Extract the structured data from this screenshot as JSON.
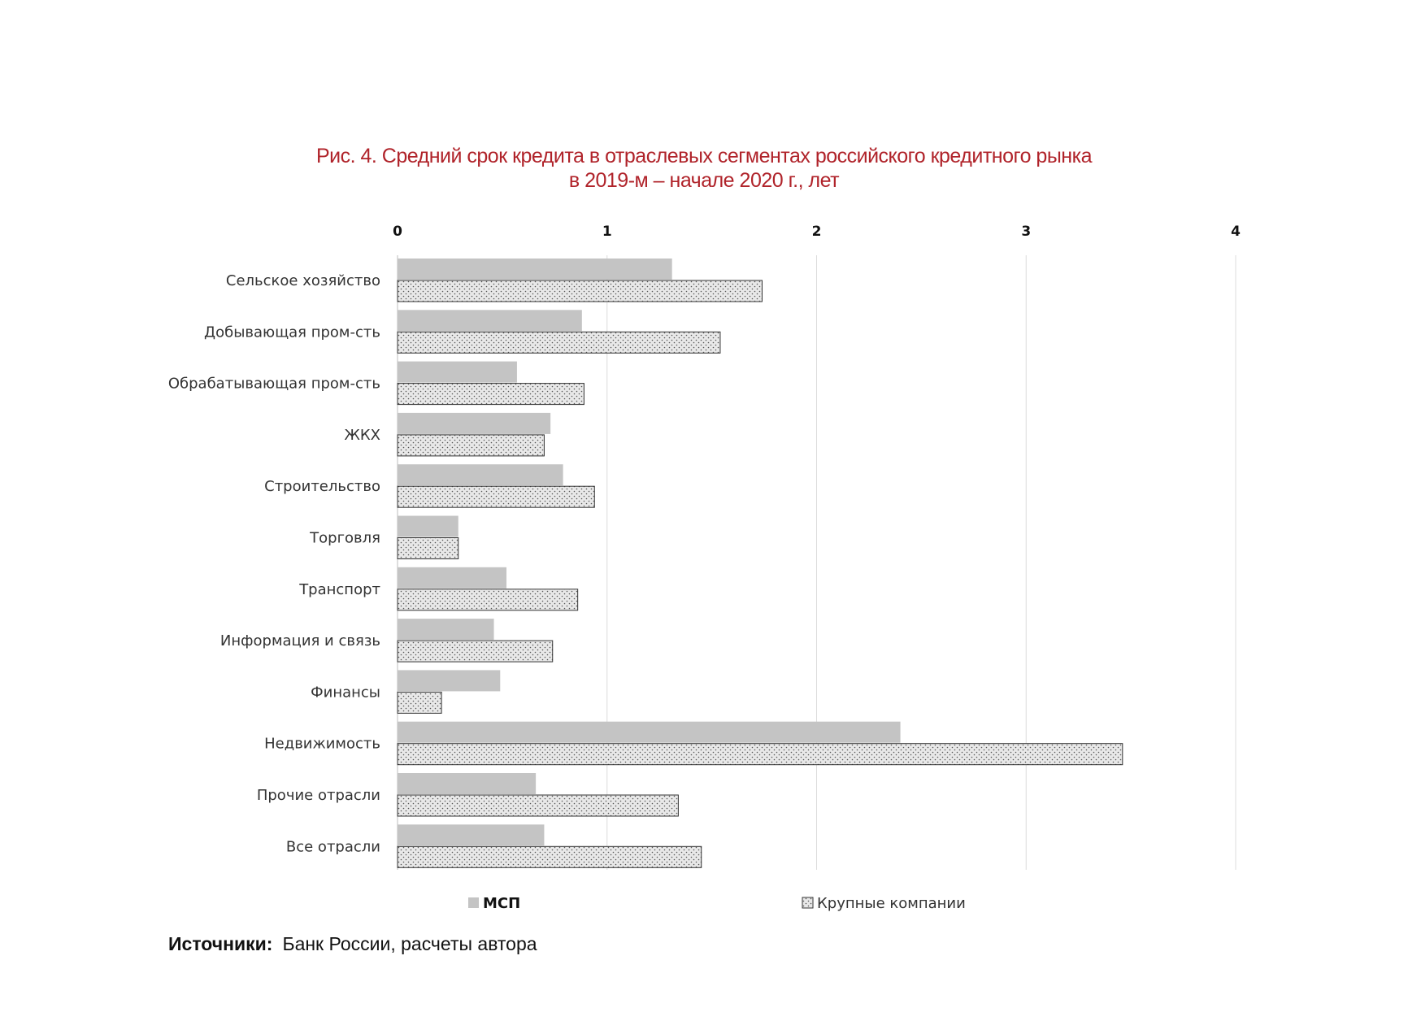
{
  "chart_data": {
    "type": "bar",
    "orientation": "horizontal",
    "title": "Рис. 4. Средний срок кредита в отраслевых сегментах российского кредитного рынка",
    "subtitle": "в 2019-м – начале 2020 г., лет",
    "categories": [
      "Сельское хозяйство",
      "Добывающая пром-сть",
      "Обрабатывающая пром-сть",
      "ЖКХ",
      "Строительство",
      "Торговля",
      "Транспорт",
      "Информация и связь",
      "Финансы",
      "Недвижимость",
      "Прочие отрасли",
      "Все отрасли"
    ],
    "series": [
      {
        "name": "МСП",
        "color": "#c4c4c4",
        "pattern": "solid",
        "values": [
          1.31,
          0.88,
          0.57,
          0.73,
          0.79,
          0.29,
          0.52,
          0.46,
          0.49,
          2.4,
          0.66,
          0.7
        ]
      },
      {
        "name": "Крупные компании",
        "color": "#e8e8e8",
        "pattern": "dotted",
        "values": [
          1.74,
          1.54,
          0.89,
          0.7,
          0.94,
          0.29,
          0.86,
          0.74,
          0.21,
          3.46,
          1.34,
          1.45
        ]
      }
    ],
    "xlim": [
      0,
      4
    ],
    "xticks": [
      "0",
      "1",
      "2",
      "3",
      "4"
    ],
    "xaxis_position": "top",
    "grid": true,
    "legend_position": "bottom"
  },
  "source": {
    "label": "Источники:",
    "text": "Банк России, расчеты автора"
  }
}
